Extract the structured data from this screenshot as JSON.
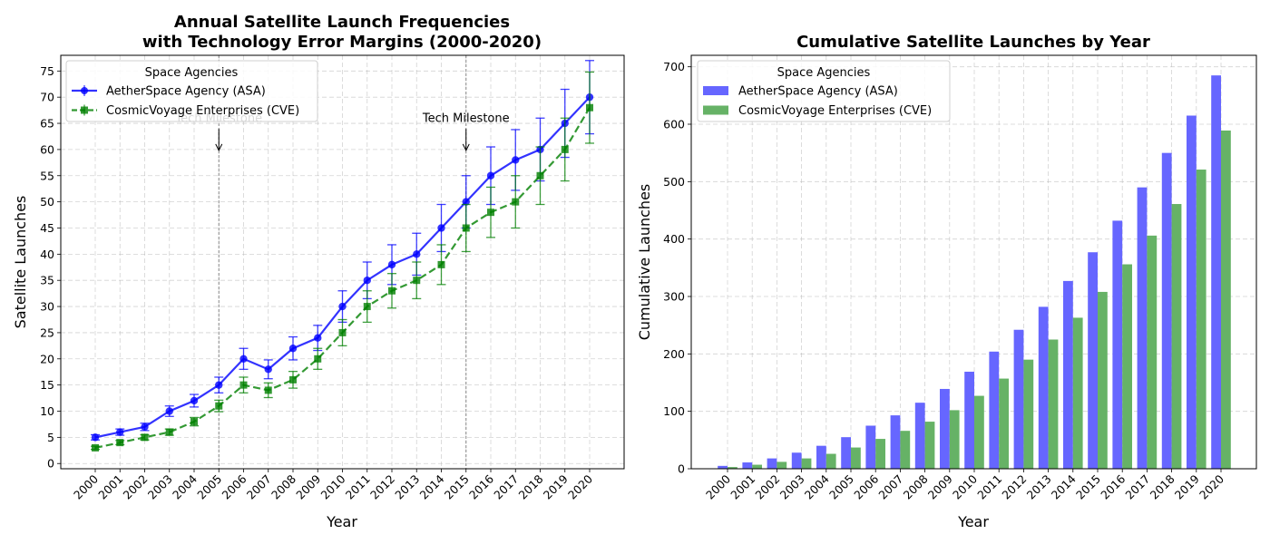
{
  "chart_data": [
    {
      "type": "line",
      "title": "Annual Satellite Launch Frequencies\nwith Technology Error Margins (2000-2020)",
      "xlabel": "Year",
      "ylabel": "Satellite Launches",
      "categories": [
        "2000",
        "2001",
        "2002",
        "2003",
        "2004",
        "2005",
        "2006",
        "2007",
        "2008",
        "2009",
        "2010",
        "2011",
        "2012",
        "2013",
        "2014",
        "2015",
        "2016",
        "2017",
        "2018",
        "2019",
        "2020"
      ],
      "ylim": [
        -1,
        78
      ],
      "yticks": [
        0,
        5,
        10,
        15,
        20,
        25,
        30,
        35,
        40,
        45,
        50,
        55,
        60,
        65,
        70,
        75
      ],
      "grid": true,
      "legend": {
        "title": "Space Agencies",
        "placement": "top-left"
      },
      "series": [
        {
          "name": "AetherSpace Agency (ASA)",
          "color": "#0000ff",
          "marker": "circle",
          "linestyle": "solid",
          "values": [
            5,
            6,
            7,
            10,
            12,
            15,
            20,
            18,
            22,
            24,
            30,
            35,
            38,
            40,
            45,
            50,
            55,
            58,
            60,
            65,
            70
          ],
          "errors": [
            0.5,
            0.6,
            0.7,
            1.0,
            1.2,
            1.5,
            2.0,
            1.8,
            2.2,
            2.4,
            3.0,
            3.5,
            3.8,
            4.0,
            4.5,
            5.0,
            5.5,
            5.8,
            6.0,
            6.5,
            7.0
          ]
        },
        {
          "name": "CosmicVoyage Enterprises (CVE)",
          "color": "#008000",
          "marker": "square",
          "linestyle": "dashed",
          "values": [
            3,
            4,
            5,
            6,
            8,
            11,
            15,
            14,
            16,
            20,
            25,
            30,
            33,
            35,
            38,
            45,
            48,
            50,
            55,
            60,
            68
          ],
          "errors": [
            0.3,
            0.4,
            0.5,
            0.6,
            0.8,
            1.1,
            1.5,
            1.4,
            1.6,
            2.0,
            2.5,
            3.0,
            3.3,
            3.5,
            3.8,
            4.5,
            4.8,
            5.0,
            5.5,
            6.0,
            6.8
          ]
        }
      ],
      "annotations": [
        {
          "text": "Tech Milestone",
          "x": "2005",
          "text_y": 66,
          "arrow_y": 60
        },
        {
          "text": "Tech Milestone",
          "x": "2015",
          "text_y": 66,
          "arrow_y": 60
        }
      ],
      "vlines": [
        "2005",
        "2015"
      ]
    },
    {
      "type": "bar",
      "title": "Cumulative Satellite Launches by Year",
      "xlabel": "Year",
      "ylabel": "Cumulative Launches",
      "categories": [
        "2000",
        "2001",
        "2002",
        "2003",
        "2004",
        "2005",
        "2006",
        "2007",
        "2008",
        "2009",
        "2010",
        "2011",
        "2012",
        "2013",
        "2014",
        "2015",
        "2016",
        "2017",
        "2018",
        "2019",
        "2020"
      ],
      "ylim": [
        0,
        720
      ],
      "yticks": [
        0,
        100,
        200,
        300,
        400,
        500,
        600,
        700
      ],
      "grid": true,
      "legend": {
        "title": "Space Agencies",
        "placement": "top-left"
      },
      "series": [
        {
          "name": "AetherSpace Agency (ASA)",
          "color": "#6666ff",
          "values": [
            5,
            11,
            18,
            28,
            40,
            55,
            75,
            93,
            115,
            139,
            169,
            204,
            242,
            282,
            327,
            377,
            432,
            490,
            550,
            615,
            685
          ]
        },
        {
          "name": "CosmicVoyage Enterprises (CVE)",
          "color": "#66b266",
          "values": [
            3,
            7,
            12,
            18,
            26,
            37,
            52,
            66,
            82,
            102,
            127,
            157,
            190,
            225,
            263,
            308,
            356,
            406,
            461,
            521,
            589
          ]
        }
      ]
    }
  ]
}
